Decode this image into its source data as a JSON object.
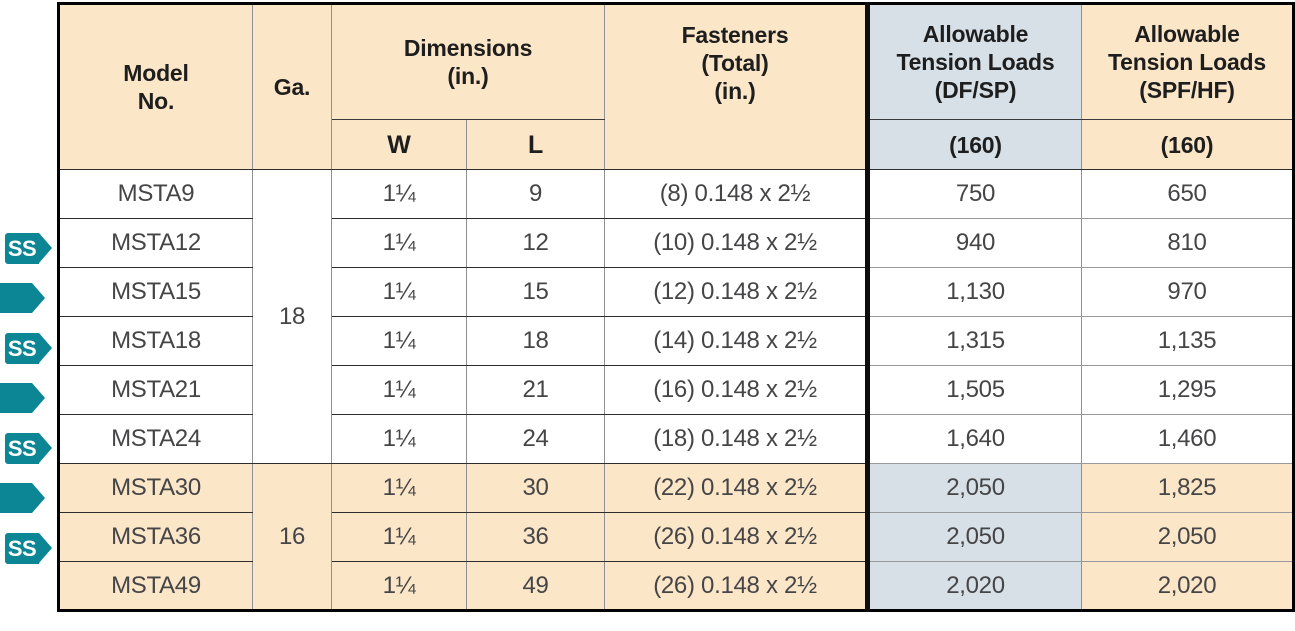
{
  "colors": {
    "header_tan": "#fbe6c8",
    "highlight_row_tan": "#fbe6c8",
    "loads_blue_gray": "#d7e0e7",
    "marker_teal": "#0c8594",
    "border_dark": "#2d2d2d",
    "border_gray": "#8e9093",
    "outer_border_black": "#000000"
  },
  "markers": {
    "ss_label": "SS"
  },
  "table": {
    "header": {
      "model": "Model\nNo.",
      "ga": "Ga.",
      "dimensions": "Dimensions\n(in.)",
      "w": "W",
      "l": "L",
      "fasteners": "Fasteners\n(Total)\n(in.)",
      "dfsp_title": "Allowable\nTension Loads\n(DF/SP)",
      "dfsp_sub": "(160)",
      "spfhf_title": "Allowable\nTension Loads\n(SPF/HF)",
      "spfhf_sub": "(160)"
    },
    "ga_groups": [
      {
        "value": "18",
        "rows": 6
      },
      {
        "value": "16",
        "rows": 3
      }
    ],
    "rows": [
      {
        "marker": null,
        "model": "MSTA9",
        "w": "1¼",
        "l": "9",
        "fasteners": "(8) 0.148 x 2½",
        "dfsp": "750",
        "spfhf": "650"
      },
      {
        "marker": "ss",
        "model": "MSTA12",
        "w": "1¼",
        "l": "12",
        "fasteners": "(10) 0.148 x 2½",
        "dfsp": "940",
        "spfhf": "810"
      },
      {
        "marker": "arrow",
        "model": "MSTA15",
        "w": "1¼",
        "l": "15",
        "fasteners": "(12) 0.148 x 2½",
        "dfsp": "1,130",
        "spfhf": "970"
      },
      {
        "marker": "ss",
        "model": "MSTA18",
        "w": "1¼",
        "l": "18",
        "fasteners": "(14) 0.148 x 2½",
        "dfsp": "1,315",
        "spfhf": "1,135"
      },
      {
        "marker": "arrow",
        "model": "MSTA21",
        "w": "1¼",
        "l": "21",
        "fasteners": "(16) 0.148 x 2½",
        "dfsp": "1,505",
        "spfhf": "1,295"
      },
      {
        "marker": "ss",
        "model": "MSTA24",
        "w": "1¼",
        "l": "24",
        "fasteners": "(18) 0.148 x 2½",
        "dfsp": "1,640",
        "spfhf": "1,460"
      },
      {
        "marker": "arrow",
        "model": "MSTA30",
        "w": "1¼",
        "l": "30",
        "fasteners": "(22) 0.148 x 2½",
        "dfsp": "2,050",
        "spfhf": "1,825"
      },
      {
        "marker": "ss",
        "model": "MSTA36",
        "w": "1¼",
        "l": "36",
        "fasteners": "(26) 0.148 x 2½",
        "dfsp": "2,050",
        "spfhf": "2,050"
      },
      {
        "marker": null,
        "model": "MSTA49",
        "w": "1¼",
        "l": "49",
        "fasteners": "(26) 0.148 x 2½",
        "dfsp": "2,020",
        "spfhf": "2,020"
      }
    ]
  }
}
